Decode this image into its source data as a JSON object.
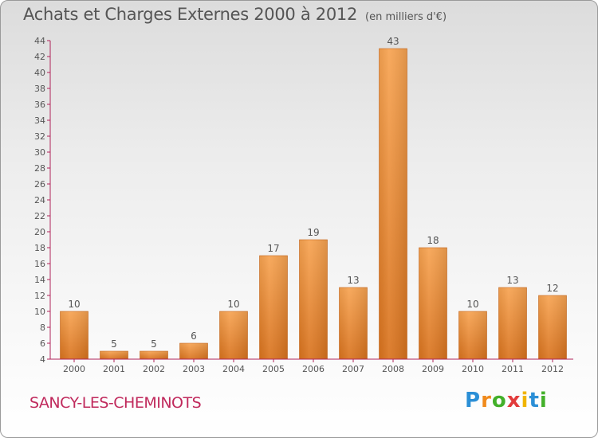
{
  "title": "Achats et Charges Externes 2000 à 2012",
  "subtitle": "(en milliers d'€)",
  "town": "SANCY-LES-CHEMINOTS",
  "brand": {
    "letters": [
      "P",
      "r",
      "o",
      "x",
      "i",
      "t",
      "i"
    ],
    "colors": [
      "#2b8fd6",
      "#f08a1c",
      "#43b02a",
      "#e23b3b",
      "#f0b400",
      "#2b8fd6",
      "#43b02a"
    ]
  },
  "colors": {
    "bar_top": "#f7a351",
    "bar_bottom": "#d9731e",
    "axis": "#b0245a",
    "text": "#555555"
  },
  "chart_data": {
    "type": "bar",
    "categories": [
      "2000",
      "2001",
      "2002",
      "2003",
      "2004",
      "2005",
      "2006",
      "2007",
      "2008",
      "2009",
      "2010",
      "2011",
      "2012"
    ],
    "values": [
      10,
      5,
      5,
      6,
      10,
      17,
      19,
      13,
      43,
      18,
      10,
      13,
      12
    ],
    "ylim": [
      4,
      44
    ],
    "yticks": [
      4,
      6,
      8,
      10,
      12,
      14,
      16,
      18,
      20,
      22,
      24,
      26,
      28,
      30,
      32,
      34,
      36,
      38,
      40,
      42,
      44
    ],
    "grid": false,
    "title": "Achats et Charges Externes 2000 à 2012",
    "xlabel": "",
    "ylabel": ""
  }
}
